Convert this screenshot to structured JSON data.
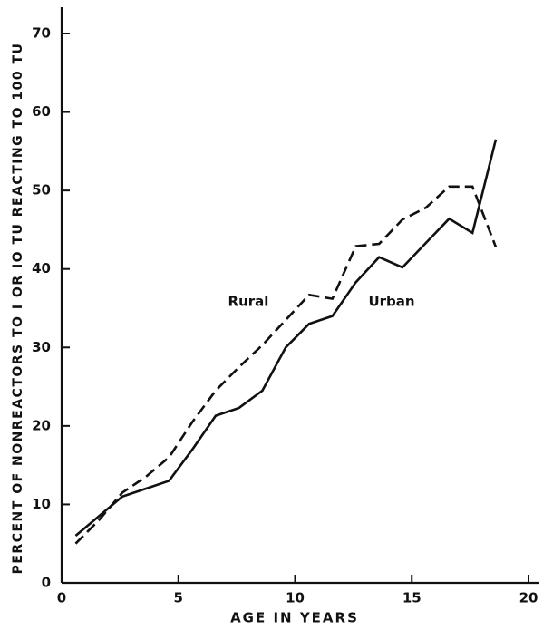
{
  "chart_data": {
    "type": "line",
    "x_label": "AGE IN YEARS",
    "y_label": "PERCENT OF NONREACTORS TO I OR IO TU REACTING TO 100 TU",
    "x": [
      0.6,
      1.6,
      2.6,
      3.6,
      4.6,
      5.6,
      6.6,
      7.6,
      8.6,
      9.6,
      10.6,
      11.6,
      12.6,
      13.6,
      14.6,
      15.6,
      16.6,
      17.6,
      18.6
    ],
    "series": [
      {
        "name": "Rural",
        "color": "#111111",
        "dashed": true,
        "values": [
          5,
          8,
          11.5,
          13.5,
          16,
          20.5,
          24.5,
          27.5,
          30.3,
          33.5,
          36.7,
          36.2,
          42.9,
          43.2,
          46.3,
          47.8,
          50.5,
          50.5,
          42.8
        ]
      },
      {
        "name": "Urban",
        "color": "#111111",
        "dashed": false,
        "values": [
          6,
          8.5,
          11,
          12,
          13,
          17,
          21.3,
          22.3,
          24.5,
          30,
          33,
          34,
          38.3,
          41.5,
          40.2,
          43.3,
          46.4,
          44.6,
          56.5
        ]
      }
    ],
    "xlim": [
      0,
      20
    ],
    "xticks": [
      0,
      5,
      10,
      15,
      20
    ],
    "ylim": [
      0,
      70
    ],
    "yticks": [
      0,
      10,
      20,
      30,
      40,
      50,
      60,
      70
    ]
  }
}
